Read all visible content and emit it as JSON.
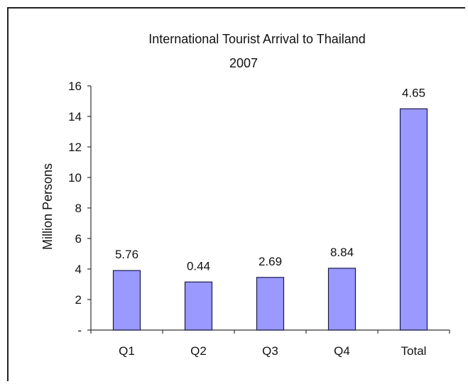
{
  "chart_data": {
    "type": "bar",
    "title": "International Tourist Arrival to Thailand",
    "subtitle": "2007",
    "xlabel": "",
    "ylabel": "Million Persons",
    "categories": [
      "Q1",
      "Q2",
      "Q3",
      "Q4",
      "Total"
    ],
    "values": [
      3.9,
      3.15,
      3.45,
      4.05,
      14.5
    ],
    "data_labels": [
      "5.76",
      "0.44",
      "2.69",
      "8.84",
      "4.65"
    ],
    "ylim": [
      0,
      16
    ],
    "yticks": [
      "-",
      "2",
      "4",
      "6",
      "8",
      "10",
      "12",
      "14",
      "16"
    ],
    "grid": false,
    "legend": "none",
    "bar_color": "#9999ff",
    "bar_edge_color": "#1a1a4a"
  }
}
